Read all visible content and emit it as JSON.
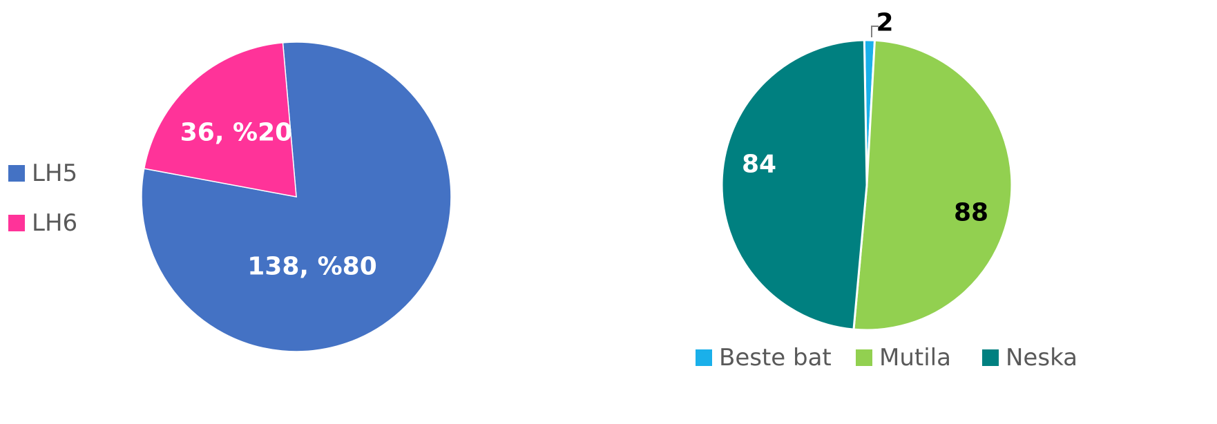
{
  "chart_data": [
    {
      "type": "pie",
      "title": "",
      "legend_position": "left",
      "slices": [
        {
          "name": "LH5",
          "value": 138,
          "percent": 80,
          "label": "138, %80",
          "color": "#4472C4",
          "label_color": "#ffffff"
        },
        {
          "name": "LH6",
          "value": 36,
          "percent": 20,
          "label": "36, %20",
          "color": "#FF3399",
          "label_color": "#ffffff"
        }
      ]
    },
    {
      "type": "pie",
      "title": "",
      "legend_position": "bottom",
      "slices": [
        {
          "name": "Beste bat",
          "value": 2,
          "label": "2",
          "color": "#1AB0EA",
          "label_color": "#000000"
        },
        {
          "name": "Mutila",
          "value": 88,
          "label": "88",
          "color": "#92D050",
          "label_color": "#000000"
        },
        {
          "name": "Neska",
          "value": 84,
          "label": "84",
          "color": "#008080",
          "label_color": "#ffffff"
        }
      ]
    }
  ]
}
